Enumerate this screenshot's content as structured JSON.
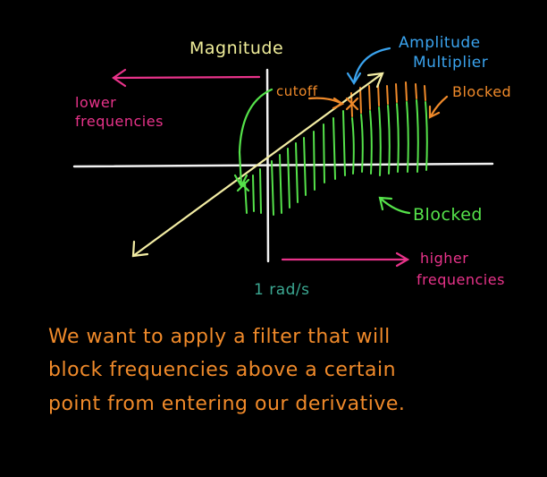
{
  "colors": {
    "background": "#000000",
    "axis": "#f2f2f2",
    "magnitude_label": "#f0ee9a",
    "multiplier_line": "#f3eda4",
    "low_freq": "#e8338a",
    "high_freq": "#e8338a",
    "cutoff": "#f08a2a",
    "blocked_orange": "#f08a2a",
    "passed_green": "#55e24a",
    "annotation_blue": "#3aa3ee",
    "caption": "#f08a2a"
  },
  "labels": {
    "magnitude": "Magnitude",
    "amplitude_multiplier_line1": "Amplitude",
    "amplitude_multiplier_line2": "Multiplier",
    "cutoff": "cutoff",
    "blocked_top": "Blocked",
    "blocked_bottom": "Blocked",
    "lower_freq_line1": "lower",
    "lower_freq_line2": "frequencies",
    "higher_freq_line1": "higher",
    "higher_freq_line2": "frequencies",
    "one_rad": "1 rad/s"
  },
  "caption": {
    "line1": "We want to apply a filter that will",
    "line2": "block frequencies above a certain",
    "line3": "point from entering our derivative."
  }
}
